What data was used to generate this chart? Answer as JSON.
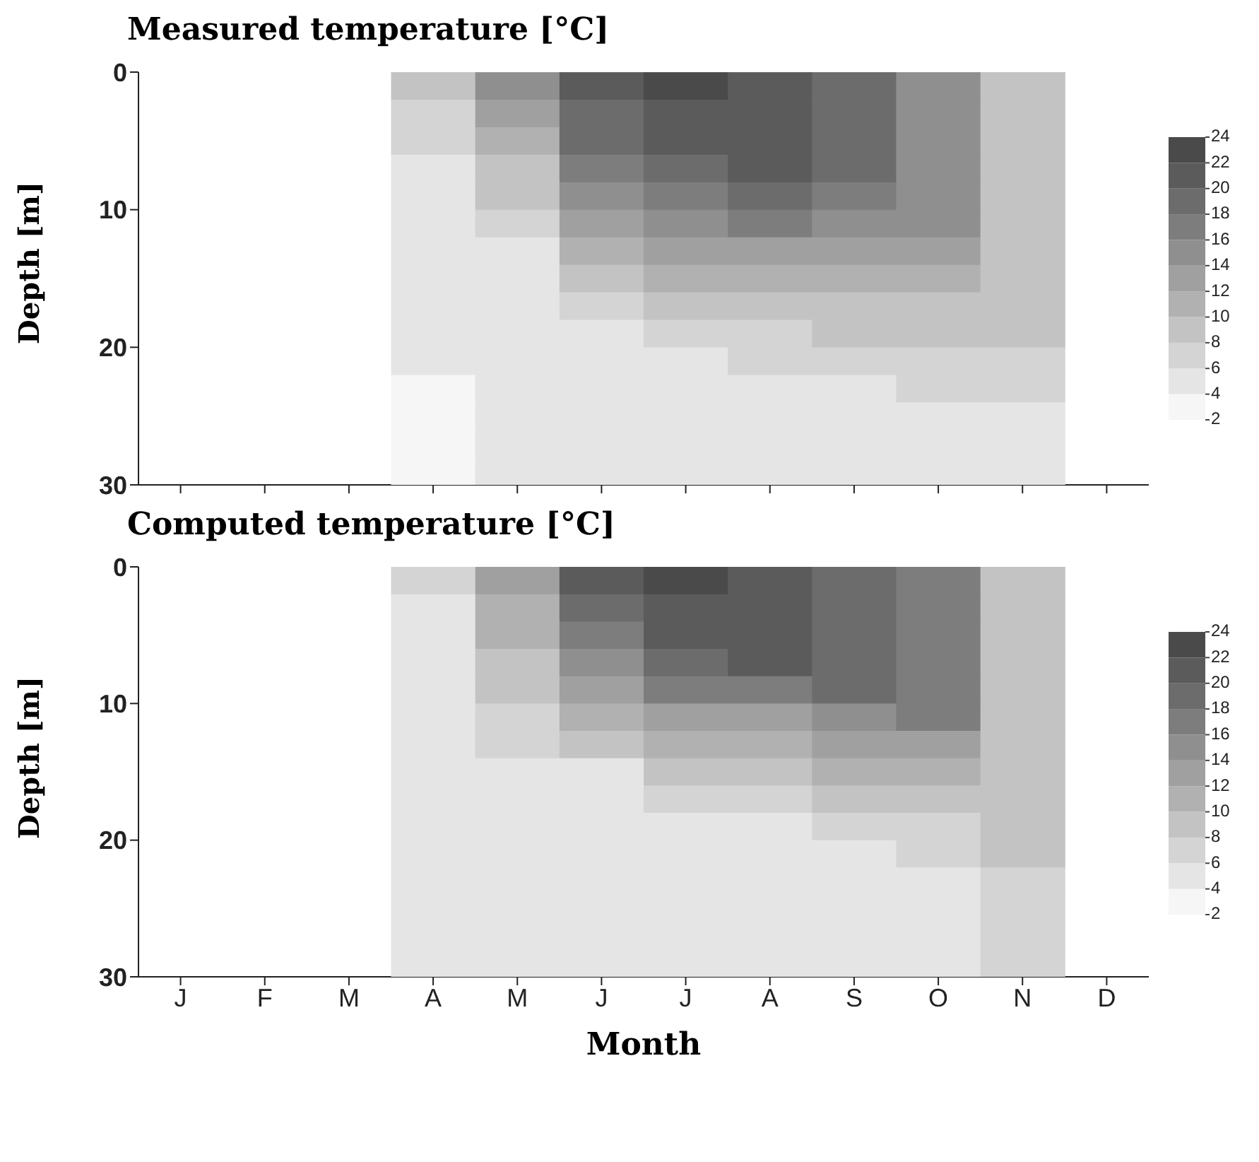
{
  "chart_data": [
    {
      "type": "heatmap",
      "title": "Measured temperature [°C]",
      "ylabel": "Depth [m]",
      "categories": [
        null,
        null,
        null,
        null,
        null,
        null,
        null,
        null,
        null,
        null,
        null,
        null
      ],
      "ylim": [
        30,
        0
      ],
      "yticks": [
        0,
        10,
        20,
        30
      ],
      "clim": [
        2,
        24
      ],
      "cticks": [
        2,
        4,
        6,
        8,
        10,
        12,
        14,
        16,
        18,
        20,
        22,
        24
      ],
      "cells": [
        [
          null,
          null,
          null,
          9,
          15,
          21,
          23,
          21,
          19,
          15,
          9,
          null
        ],
        [
          null,
          null,
          null,
          7,
          13,
          19,
          21,
          21,
          19,
          15,
          9,
          null
        ],
        [
          null,
          null,
          null,
          7,
          11,
          19,
          21,
          21,
          19,
          15,
          9,
          null
        ],
        [
          null,
          null,
          null,
          5,
          9,
          17,
          19,
          21,
          19,
          15,
          9,
          null
        ],
        [
          null,
          null,
          null,
          5,
          9,
          15,
          17,
          19,
          17,
          15,
          9,
          null
        ],
        [
          null,
          null,
          null,
          5,
          7,
          13,
          15,
          17,
          15,
          15,
          9,
          null
        ],
        [
          null,
          null,
          null,
          5,
          5,
          11,
          13,
          13,
          13,
          13,
          9,
          null
        ],
        [
          null,
          null,
          null,
          5,
          5,
          9,
          11,
          11,
          11,
          11,
          9,
          null
        ],
        [
          null,
          null,
          null,
          5,
          5,
          7,
          9,
          9,
          9,
          9,
          9,
          null
        ],
        [
          null,
          null,
          null,
          5,
          5,
          5,
          7,
          7,
          9,
          9,
          9,
          null
        ],
        [
          null,
          null,
          null,
          5,
          5,
          5,
          5,
          7,
          7,
          7,
          7,
          null
        ],
        [
          null,
          null,
          null,
          3,
          5,
          5,
          5,
          5,
          5,
          7,
          7,
          null
        ],
        [
          null,
          null,
          null,
          3,
          5,
          5,
          5,
          5,
          5,
          5,
          5,
          null
        ],
        [
          null,
          null,
          null,
          3,
          5,
          5,
          5,
          5,
          5,
          5,
          5,
          null
        ],
        [
          null,
          null,
          null,
          3,
          5,
          5,
          5,
          5,
          5,
          5,
          5,
          null
        ]
      ]
    },
    {
      "type": "heatmap",
      "title": "Computed temperature [°C]",
      "xlabel": "Month",
      "ylabel": "Depth [m]",
      "categories": [
        "J",
        "F",
        "M",
        "A",
        "M",
        "J",
        "J",
        "A",
        "S",
        "O",
        "N",
        "D"
      ],
      "ylim": [
        30,
        0
      ],
      "yticks": [
        0,
        10,
        20,
        30
      ],
      "clim": [
        2,
        24
      ],
      "cticks": [
        2,
        4,
        6,
        8,
        10,
        12,
        14,
        16,
        18,
        20,
        22,
        24
      ],
      "cells": [
        [
          null,
          null,
          null,
          7,
          13,
          21,
          23,
          21,
          19,
          17,
          9,
          null
        ],
        [
          null,
          null,
          null,
          5,
          11,
          19,
          21,
          21,
          19,
          17,
          9,
          null
        ],
        [
          null,
          null,
          null,
          5,
          11,
          17,
          21,
          21,
          19,
          17,
          9,
          null
        ],
        [
          null,
          null,
          null,
          5,
          9,
          15,
          19,
          21,
          19,
          17,
          9,
          null
        ],
        [
          null,
          null,
          null,
          5,
          9,
          13,
          17,
          17,
          19,
          17,
          9,
          null
        ],
        [
          null,
          null,
          null,
          5,
          7,
          11,
          13,
          13,
          15,
          17,
          9,
          null
        ],
        [
          null,
          null,
          null,
          5,
          7,
          9,
          11,
          11,
          13,
          13,
          9,
          null
        ],
        [
          null,
          null,
          null,
          5,
          5,
          5,
          9,
          9,
          11,
          11,
          9,
          null
        ],
        [
          null,
          null,
          null,
          5,
          5,
          5,
          7,
          7,
          9,
          9,
          9,
          null
        ],
        [
          null,
          null,
          null,
          5,
          5,
          5,
          5,
          5,
          7,
          7,
          9,
          null
        ],
        [
          null,
          null,
          null,
          5,
          5,
          5,
          5,
          5,
          5,
          7,
          9,
          null
        ],
        [
          null,
          null,
          null,
          5,
          5,
          5,
          5,
          5,
          5,
          5,
          7,
          null
        ],
        [
          null,
          null,
          null,
          5,
          5,
          5,
          5,
          5,
          5,
          5,
          7,
          null
        ],
        [
          null,
          null,
          null,
          5,
          5,
          5,
          5,
          5,
          5,
          5,
          7,
          null
        ],
        [
          null,
          null,
          null,
          5,
          5,
          5,
          5,
          5,
          5,
          5,
          7,
          null
        ]
      ]
    }
  ]
}
